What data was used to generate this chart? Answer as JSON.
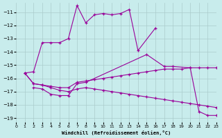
{
  "bg_color": "#c8ecec",
  "grid_color": "#aacccc",
  "line_color": "#990099",
  "xlabel": "Windchill (Refroidissement éolien,°C)",
  "xlim": [
    0,
    23
  ],
  "ylim": [
    -19.3,
    -10.3
  ],
  "xticks": [
    0,
    1,
    2,
    3,
    4,
    5,
    6,
    7,
    8,
    9,
    10,
    11,
    12,
    13,
    14,
    15,
    16,
    17,
    18,
    19,
    20,
    21,
    22,
    23
  ],
  "yticks": [
    -19,
    -18,
    -17,
    -16,
    -15,
    -14,
    -13,
    -12,
    -11
  ],
  "line1_x": [
    1,
    2,
    3,
    4,
    5,
    6,
    7,
    8,
    9,
    10,
    11,
    12,
    13,
    14,
    16
  ],
  "line1_y": [
    -15.6,
    -15.5,
    -13.3,
    -13.3,
    -13.3,
    -13.0,
    -10.5,
    -11.8,
    -11.2,
    -11.1,
    -11.2,
    -11.1,
    -10.8,
    -13.9,
    -12.2
  ],
  "line2_x": [
    2,
    3,
    4,
    5,
    6,
    7,
    8,
    15,
    17,
    18,
    20,
    21,
    22,
    23
  ],
  "line2_y": [
    -16.7,
    -16.8,
    -17.2,
    -17.3,
    -17.3,
    -16.4,
    -16.3,
    -14.2,
    -15.1,
    -15.1,
    -15.2,
    -18.5,
    -18.8,
    -18.8
  ],
  "line3_x": [
    1,
    2,
    3,
    4,
    5,
    6,
    7,
    8,
    9,
    10,
    11,
    12,
    13,
    14,
    15,
    16,
    17,
    18,
    19,
    20,
    21,
    22,
    23
  ],
  "line3_y": [
    -15.6,
    -16.4,
    -16.5,
    -16.6,
    -16.7,
    -16.7,
    -16.3,
    -16.2,
    -16.1,
    -16.0,
    -15.9,
    -15.8,
    -15.7,
    -15.6,
    -15.5,
    -15.4,
    -15.3,
    -15.3,
    -15.3,
    -15.2,
    -15.2,
    -15.2,
    -15.2
  ],
  "line4_x": [
    1,
    2,
    3,
    4,
    5,
    6,
    7,
    8,
    9,
    10,
    11,
    12,
    13,
    14,
    15,
    16,
    17,
    18,
    19,
    20,
    21,
    22,
    23
  ],
  "line4_y": [
    -15.6,
    -16.4,
    -16.5,
    -16.7,
    -16.9,
    -17.0,
    -16.8,
    -16.7,
    -16.8,
    -16.9,
    -17.0,
    -17.1,
    -17.2,
    -17.3,
    -17.4,
    -17.5,
    -17.6,
    -17.7,
    -17.8,
    -17.9,
    -18.0,
    -18.1,
    -18.2
  ]
}
